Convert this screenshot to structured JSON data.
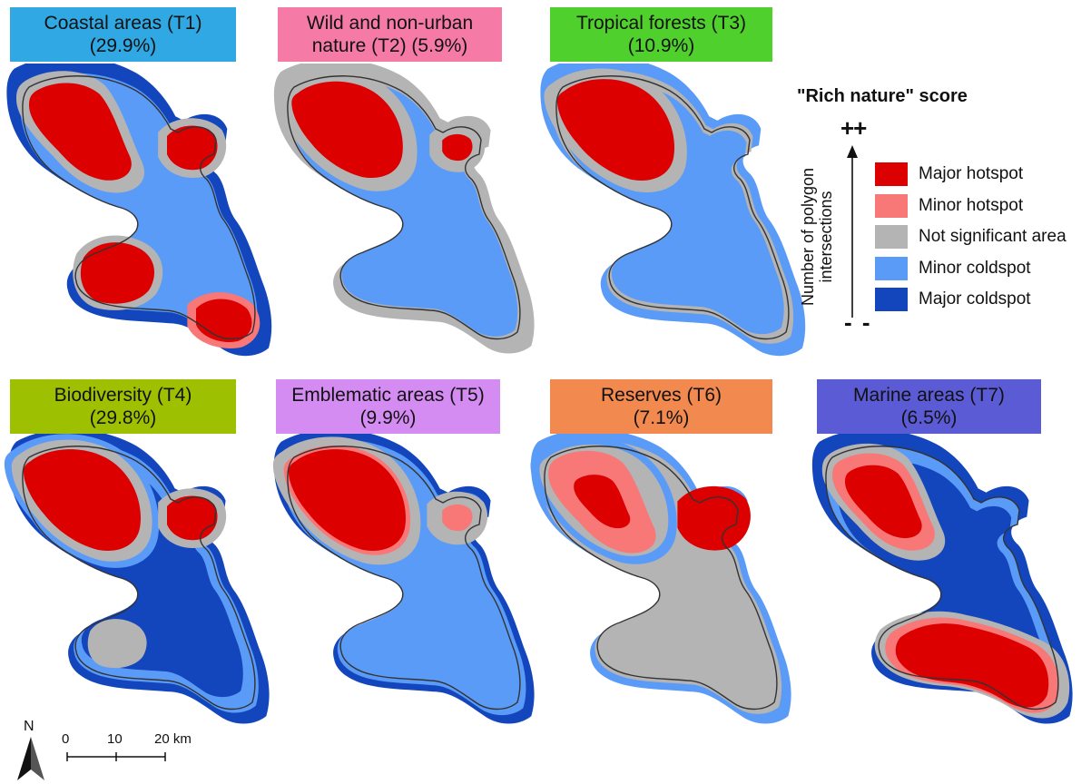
{
  "colors": {
    "major_hotspot": "#DC0000",
    "minor_hotspot": "#F87878",
    "not_significant": "#B4B4B4",
    "minor_coldspot": "#5B9BF8",
    "major_coldspot": "#1346BC",
    "outline": "#333333"
  },
  "panels": [
    {
      "line1": "Coastal areas (T1)",
      "line2": "(29.9%)",
      "color": "#2FA8E3",
      "pattern": "t1"
    },
    {
      "line1": "Wild and non-urban",
      "line2": "nature (T2) (5.9%)",
      "color": "#F57BA6",
      "pattern": "t2"
    },
    {
      "line1": "Tropical forests (T3)",
      "line2": "(10.9%)",
      "color": "#4FD02C",
      "pattern": "t3"
    },
    {
      "line1": "Biodiversity (T4)",
      "line2": "(29.8%)",
      "color": "#9DC100",
      "pattern": "t4"
    },
    {
      "line1": "Emblematic areas (T5)",
      "line2": "(9.9%)",
      "color": "#D58CF2",
      "pattern": "t5"
    },
    {
      "line1": "Reserves (T6)",
      "line2": "(7.1%)",
      "color": "#F2894F",
      "pattern": "t6"
    },
    {
      "line1": "Marine areas (T7)",
      "line2": "(6.5%)",
      "color": "#5B5BD6",
      "pattern": "t7"
    }
  ],
  "legend": {
    "title": "\"Rich nature\" score",
    "top_symbol": "++",
    "bottom_symbol": "- -",
    "axis_label_line1": "Number of polygon",
    "axis_label_line2": "intersections",
    "items": [
      {
        "label": "Major hotspot",
        "color": "#DC0000"
      },
      {
        "label": "Minor hotspot",
        "color": "#F87878"
      },
      {
        "label": "Not significant area",
        "color": "#B4B4B4"
      },
      {
        "label": "Minor coldspot",
        "color": "#5B9BF8"
      },
      {
        "label": "Major coldspot",
        "color": "#1346BC"
      }
    ]
  },
  "north_arrow": {
    "label": "N"
  },
  "scale_bar": {
    "tick0": "0",
    "tick1": "10",
    "tick2": "20 km"
  }
}
